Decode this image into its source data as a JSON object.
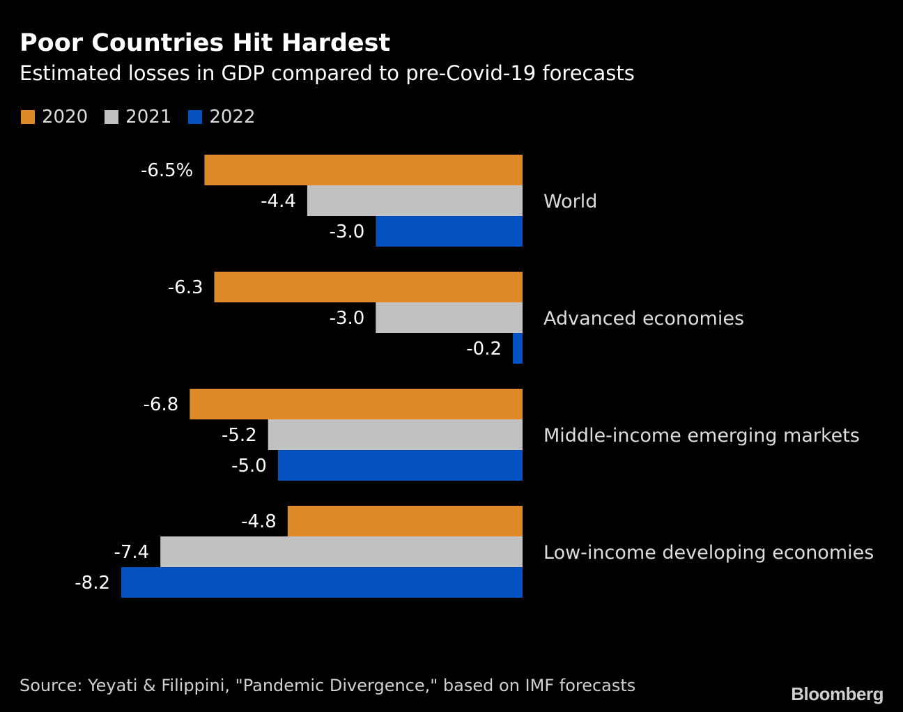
{
  "chart_data": {
    "type": "bar",
    "orientation": "horizontal",
    "title": "Poor Countries Hit Hardest",
    "subtitle": "Estimated losses in GDP compared to pre-Covid-19 forecasts",
    "categories": [
      "World",
      "Advanced economies",
      "Middle-income emerging markets",
      "Low-income developing economies"
    ],
    "series": [
      {
        "name": "2020",
        "color": "#dd8a26",
        "values": [
          -6.5,
          -6.3,
          -6.8,
          -4.8
        ],
        "labels": [
          "-6.5%",
          "-6.3",
          "-6.8",
          "-4.8"
        ]
      },
      {
        "name": "2021",
        "color": "#c1c1c1",
        "values": [
          -4.4,
          -3.0,
          -5.2,
          -7.4
        ],
        "labels": [
          "-4.4",
          "-3.0",
          "-5.2",
          "-7.4"
        ]
      },
      {
        "name": "2022",
        "color": "#0251bf",
        "values": [
          -3.0,
          -0.2,
          -5.0,
          -8.2
        ],
        "labels": [
          "-3.0",
          "-0.2",
          "-5.0",
          "-8.2"
        ]
      }
    ],
    "xlim": [
      -8.2,
      0
    ],
    "legend_position": "top-left",
    "grid": false,
    "source": "Source: Yeyati & Filippini, \"Pandemic Divergence,\" based on IMF forecasts"
  },
  "branding": {
    "logo_text": "Bloomberg"
  }
}
